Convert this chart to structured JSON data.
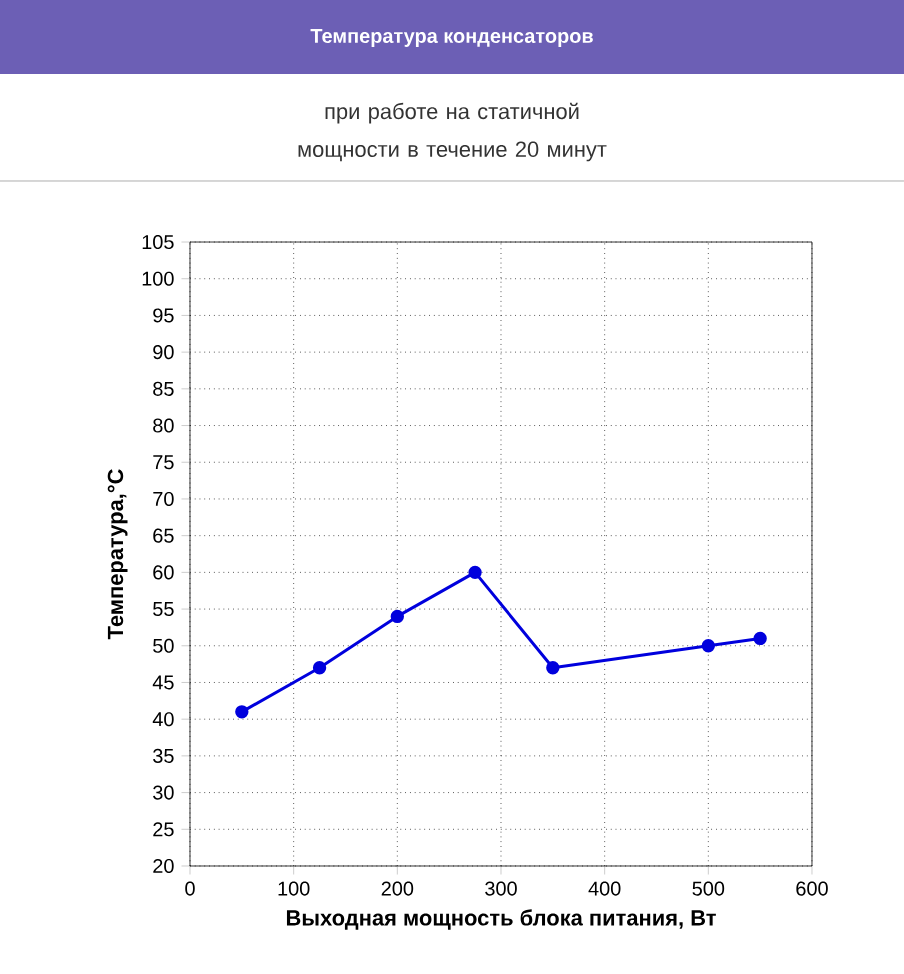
{
  "chart_data": {
    "type": "line",
    "title": "Температура конденсаторов",
    "subtitle": "при работе на статичной мощности в течение 20 минут",
    "xlabel": "Выходная мощность блока питания, Вт",
    "ylabel": "Температура,°C",
    "x": [
      50,
      125,
      200,
      275,
      350,
      500,
      550
    ],
    "series": [
      {
        "color": "#0000dd",
        "values": [
          41,
          47,
          54,
          60,
          47,
          50,
          51
        ]
      }
    ],
    "xlim": [
      0,
      600
    ],
    "ylim": [
      20,
      105
    ],
    "xticks": [
      0,
      100,
      200,
      300,
      400,
      500,
      600
    ],
    "yticks": [
      20,
      25,
      30,
      35,
      40,
      45,
      50,
      55,
      60,
      65,
      70,
      75,
      80,
      85,
      90,
      95,
      100,
      105
    ],
    "grid": true,
    "marker": "circle",
    "line_style": "solid"
  }
}
